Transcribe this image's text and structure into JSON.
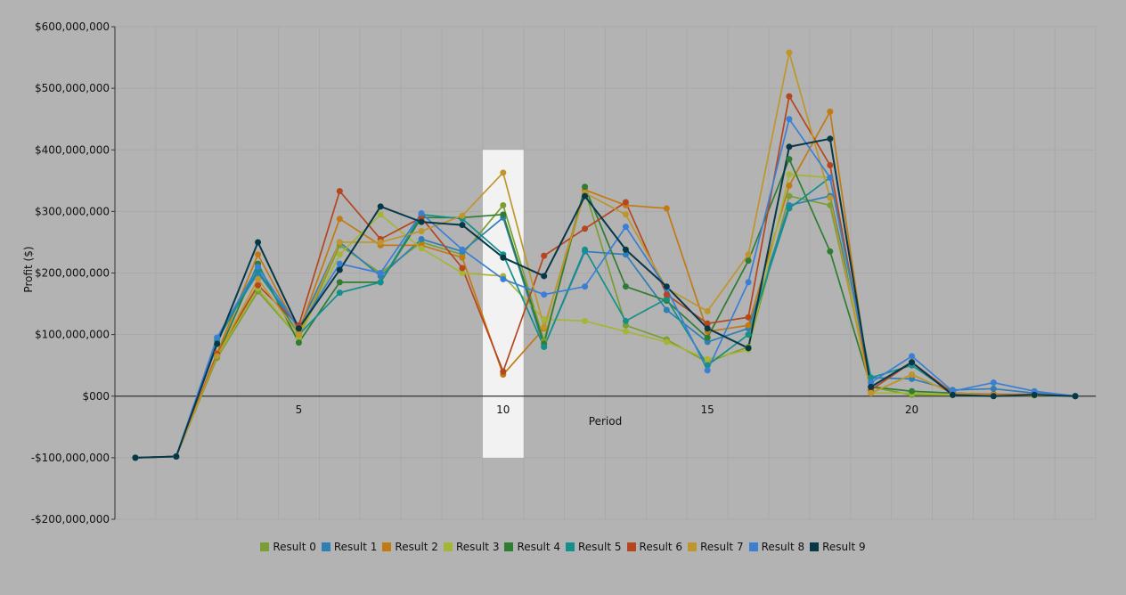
{
  "chart_data": {
    "type": "line",
    "xlabel": "Period",
    "ylabel": "Profit ($)",
    "xlim": [
      0.5,
      24.5
    ],
    "ylim": [
      -200000000,
      600000000
    ],
    "x_ticks": [
      5,
      10,
      15,
      20
    ],
    "y_ticks": [
      {
        "value": 600000000,
        "label": "$600,000,000"
      },
      {
        "value": 500000000,
        "label": "$500,000,000"
      },
      {
        "value": 400000000,
        "label": "$400,000,000"
      },
      {
        "value": 300000000,
        "label": "$300,000,000"
      },
      {
        "value": 200000000,
        "label": "$200,000,000"
      },
      {
        "value": 100000000,
        "label": "$100,000,000"
      },
      {
        "value": 0,
        "label": "$000"
      },
      {
        "value": -100000000,
        "label": "-$100,000,000"
      },
      {
        "value": -200000000,
        "label": "-$200,000,000"
      }
    ],
    "grid": true,
    "legend_position": "bottom",
    "highlight_period": 10,
    "highlight_range": [
      -100000000,
      400000000
    ],
    "x": [
      1,
      2,
      3,
      4,
      5,
      6,
      7,
      8,
      9,
      10,
      11,
      12,
      13,
      14,
      15,
      16,
      17,
      18,
      19,
      20,
      21,
      22,
      23,
      24
    ],
    "series": [
      {
        "name": "Result 0",
        "color": "#7a9e33",
        "values": [
          -100000000,
          -98000000,
          62000000,
          170000000,
          95000000,
          245000000,
          200000000,
          250000000,
          230000000,
          310000000,
          90000000,
          335000000,
          115000000,
          92000000,
          55000000,
          80000000,
          325000000,
          310000000,
          15000000,
          2000000,
          2000000,
          1000000,
          1000000,
          0
        ]
      },
      {
        "name": "Result 1",
        "color": "#2e7fb5",
        "values": [
          -100000000,
          -98000000,
          95000000,
          200000000,
          110000000,
          250000000,
          195000000,
          255000000,
          235000000,
          290000000,
          80000000,
          235000000,
          230000000,
          140000000,
          88000000,
          110000000,
          310000000,
          325000000,
          30000000,
          28000000,
          10000000,
          12000000,
          5000000,
          0
        ]
      },
      {
        "name": "Result 2",
        "color": "#c27a12",
        "values": [
          -100000000,
          -98000000,
          70000000,
          230000000,
          105000000,
          288000000,
          245000000,
          245000000,
          225000000,
          35000000,
          110000000,
          335000000,
          310000000,
          305000000,
          105000000,
          115000000,
          342000000,
          462000000,
          5000000,
          35000000,
          5000000,
          3000000,
          3000000,
          0
        ]
      },
      {
        "name": "Result 3",
        "color": "#a6b536",
        "values": [
          -100000000,
          -98000000,
          65000000,
          175000000,
          95000000,
          230000000,
          295000000,
          240000000,
          200000000,
          195000000,
          125000000,
          122000000,
          105000000,
          88000000,
          60000000,
          75000000,
          360000000,
          355000000,
          5000000,
          5000000,
          2000000,
          2000000,
          1000000,
          0
        ]
      },
      {
        "name": "Result 4",
        "color": "#2e7d32",
        "values": [
          -100000000,
          -98000000,
          65000000,
          215000000,
          87000000,
          185000000,
          185000000,
          290000000,
          290000000,
          295000000,
          85000000,
          340000000,
          178000000,
          155000000,
          95000000,
          220000000,
          385000000,
          235000000,
          15000000,
          8000000,
          5000000,
          2000000,
          2000000,
          0
        ]
      },
      {
        "name": "Result 5",
        "color": "#14908a",
        "values": [
          -100000000,
          -98000000,
          90000000,
          205000000,
          100000000,
          168000000,
          185000000,
          295000000,
          288000000,
          230000000,
          80000000,
          238000000,
          122000000,
          158000000,
          50000000,
          100000000,
          305000000,
          355000000,
          30000000,
          50000000,
          5000000,
          2000000,
          2000000,
          0
        ]
      },
      {
        "name": "Result 6",
        "color": "#b5461f",
        "values": [
          -100000000,
          -98000000,
          68000000,
          180000000,
          115000000,
          333000000,
          255000000,
          290000000,
          208000000,
          40000000,
          228000000,
          272000000,
          315000000,
          165000000,
          118000000,
          128000000,
          487000000,
          375000000,
          10000000,
          55000000,
          5000000,
          3000000,
          3000000,
          0
        ]
      },
      {
        "name": "Result 7",
        "color": "#bf962c",
        "values": [
          -100000000,
          -98000000,
          65000000,
          190000000,
          100000000,
          250000000,
          250000000,
          268000000,
          293000000,
          363000000,
          112000000,
          330000000,
          295000000,
          175000000,
          138000000,
          230000000,
          558000000,
          322000000,
          5000000,
          35000000,
          5000000,
          2000000,
          2000000,
          0
        ]
      },
      {
        "name": "Result 8",
        "color": "#3b7fd4",
        "values": [
          -100000000,
          -98000000,
          95000000,
          210000000,
          110000000,
          215000000,
          200000000,
          297000000,
          238000000,
          190000000,
          165000000,
          178000000,
          275000000,
          175000000,
          42000000,
          185000000,
          450000000,
          355000000,
          22000000,
          65000000,
          8000000,
          22000000,
          8000000,
          0
        ]
      },
      {
        "name": "Result 9",
        "color": "#063848",
        "values": [
          -100000000,
          -98000000,
          85000000,
          250000000,
          110000000,
          205000000,
          308000000,
          283000000,
          278000000,
          225000000,
          195000000,
          325000000,
          238000000,
          178000000,
          110000000,
          78000000,
          405000000,
          418000000,
          15000000,
          55000000,
          2000000,
          0,
          2000000,
          0
        ]
      }
    ]
  }
}
